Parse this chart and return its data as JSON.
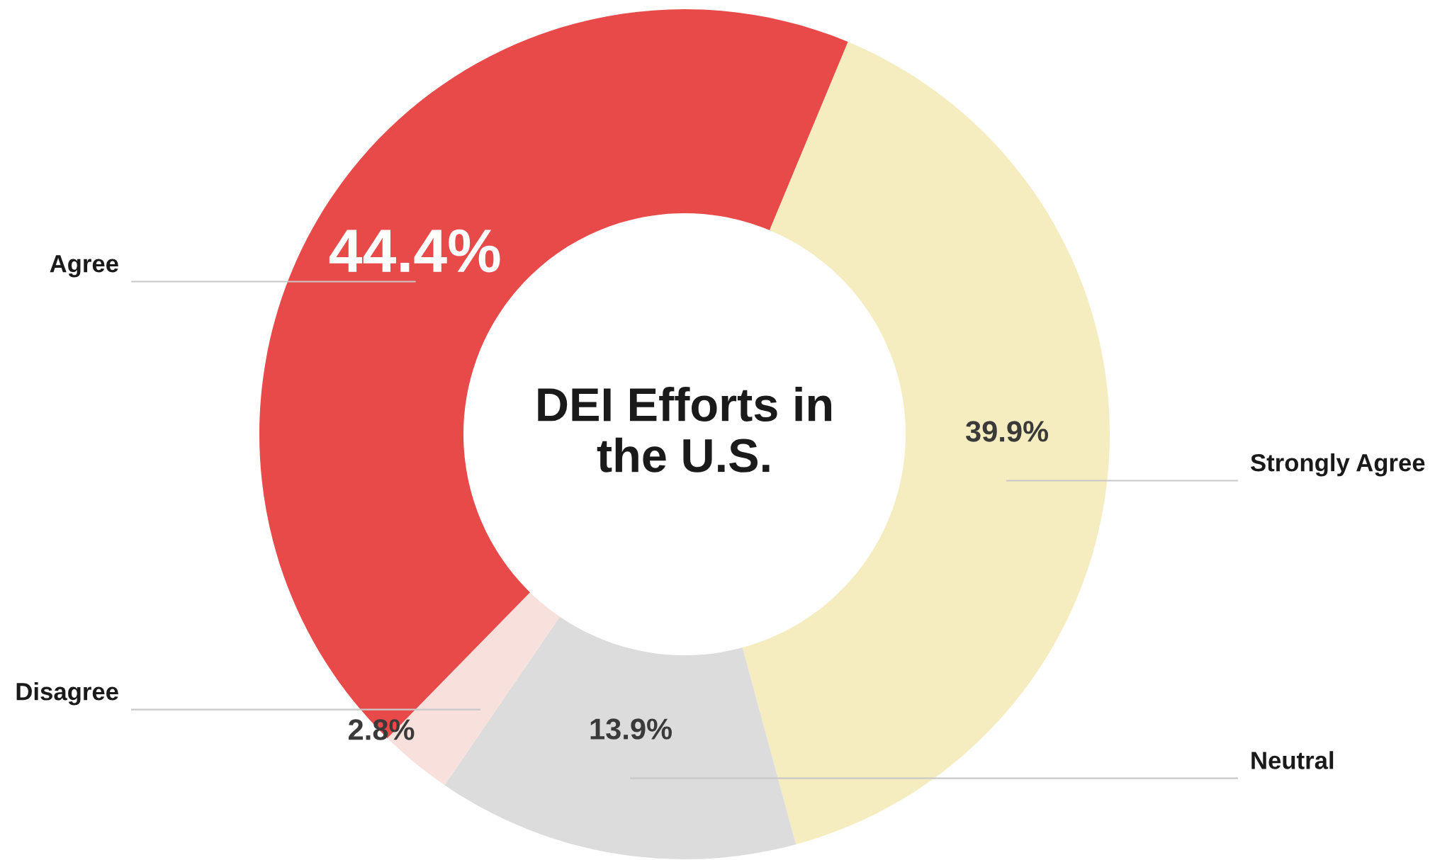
{
  "chart_data": {
    "type": "donut",
    "title": "DEI Efforts in the U.S.",
    "categories": [
      "Strongly Agree",
      "Neutral",
      "Disagree",
      "Agree"
    ],
    "values": [
      39.9,
      13.9,
      2.8,
      44.4
    ],
    "colors": [
      "#f5edc0",
      "#dcdcdc",
      "#f8e0dd",
      "#e84a4a"
    ],
    "value_labels": [
      "39.9%",
      "13.9%",
      "2.8%",
      "44.4%"
    ],
    "legend": false
  }
}
